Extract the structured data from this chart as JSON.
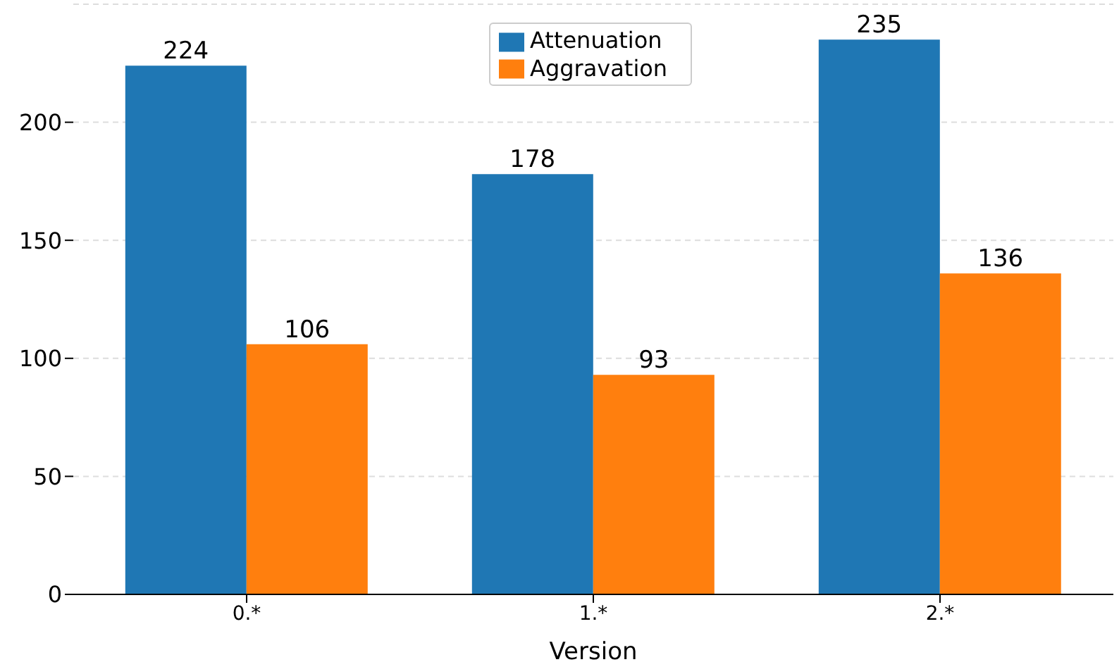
{
  "chart_data": {
    "type": "bar",
    "xlabel": "Version",
    "categories": [
      "0.*",
      "1.*",
      "2.*"
    ],
    "series": [
      {
        "name": "Attenuation",
        "color": "#1f77b4",
        "values": [
          224,
          178,
          235
        ]
      },
      {
        "name": "Aggravation",
        "color": "#ff7f0e",
        "values": [
          106,
          93,
          136
        ]
      }
    ],
    "ylim": [
      0,
      250
    ],
    "yticks": [
      0,
      50,
      100,
      150,
      200
    ],
    "grid": "y",
    "legend": "top",
    "data_labels": true
  }
}
